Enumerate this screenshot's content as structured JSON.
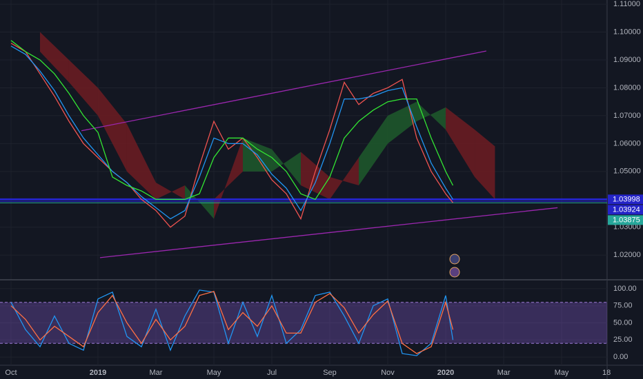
{
  "chart_data": [
    {
      "type": "line",
      "x": [
        0,
        0.5,
        1,
        1.5,
        2,
        2.5,
        3,
        3.5,
        4,
        4.5,
        5,
        5.5,
        6,
        6.5,
        7,
        7.5,
        8,
        8.5,
        9,
        9.5,
        10,
        10.5,
        11,
        11.5,
        12,
        12.5,
        13,
        13.5,
        14,
        14.5,
        15,
        15.25
      ],
      "series": [
        {
          "color": "#ef5350",
          "values": [
            1.096,
            1.093,
            1.085,
            1.077,
            1.068,
            1.06,
            1.055,
            1.05,
            1.046,
            1.04,
            1.036,
            1.03,
            1.034,
            1.052,
            1.068,
            1.058,
            1.062,
            1.055,
            1.047,
            1.042,
            1.033,
            1.05,
            1.065,
            1.082,
            1.074,
            1.078,
            1.08,
            1.083,
            1.062,
            1.05,
            1.042,
            1.0388
          ]
        },
        {
          "color": "#2196f3",
          "values": [
            1.095,
            1.092,
            1.086,
            1.079,
            1.07,
            1.062,
            1.056,
            1.05,
            1.046,
            1.041,
            1.037,
            1.033,
            1.036,
            1.048,
            1.062,
            1.06,
            1.06,
            1.056,
            1.049,
            1.044,
            1.036,
            1.046,
            1.06,
            1.076,
            1.076,
            1.077,
            1.079,
            1.08,
            1.066,
            1.053,
            1.044,
            1.04
          ]
        },
        {
          "color": "#33e633",
          "values": [
            1.097,
            1.093,
            1.09,
            1.085,
            1.078,
            1.07,
            1.064,
            1.048,
            1.045,
            1.043,
            1.04,
            1.04,
            1.04,
            1.042,
            1.055,
            1.062,
            1.062,
            1.058,
            1.055,
            1.05,
            1.042,
            1.04,
            1.048,
            1.062,
            1.068,
            1.072,
            1.075,
            1.076,
            1.076,
            1.062,
            1.05,
            1.045
          ]
        }
      ],
      "cloud": {
        "x": [
          1,
          2,
          3,
          4,
          5,
          6,
          7,
          8,
          9,
          10,
          11,
          12,
          13,
          14,
          15,
          16,
          16.7
        ],
        "span_a": [
          1.093,
          1.082,
          1.07,
          1.05,
          1.04,
          1.045,
          1.033,
          1.062,
          1.058,
          1.045,
          1.04,
          1.055,
          1.07,
          1.075,
          1.065,
          1.048,
          1.04
        ],
        "span_b": [
          1.1,
          1.09,
          1.08,
          1.067,
          1.046,
          1.04,
          1.04,
          1.05,
          1.05,
          1.057,
          1.048,
          1.045,
          1.06,
          1.068,
          1.073,
          1.065,
          1.059
        ],
        "up_color": "#1f5a2c",
        "down_color": "#6e1c22"
      },
      "trend_lines": [
        {
          "x": [
            2.43,
            16.4
          ],
          "values": [
            1.0646,
            1.0932
          ],
          "color": "#9c27b0"
        },
        {
          "x": [
            3.07,
            18.86
          ],
          "values": [
            1.0191,
            1.037
          ],
          "color": "#9c27b0"
        }
      ],
      "price_lines": [
        {
          "value": 1.03998,
          "color": "#2424c8"
        },
        {
          "value": 1.03924,
          "color": "#2424c8"
        },
        {
          "value": 1.03875,
          "color": "#26a69a"
        }
      ],
      "xlim": [
        -0.38,
        20.57
      ],
      "xticks": [
        {
          "value": 0,
          "label": "Oct"
        },
        {
          "value": 3,
          "label": "2019"
        },
        {
          "value": 5,
          "label": "Mar"
        },
        {
          "value": 7,
          "label": "May"
        },
        {
          "value": 9,
          "label": "Jul"
        },
        {
          "value": 11,
          "label": "Sep"
        },
        {
          "value": 13,
          "label": "Nov"
        },
        {
          "value": 15,
          "label": "2020"
        },
        {
          "value": 17,
          "label": "Mar"
        },
        {
          "value": 19,
          "label": "May"
        },
        {
          "value": 20.55,
          "label": "18"
        }
      ],
      "ylim": [
        1.0114,
        1.1115
      ],
      "yticks": [
        {
          "value": 1.02,
          "label": "1.02000"
        },
        {
          "value": 1.03,
          "label": "1.03000"
        },
        {
          "value": 1.05,
          "label": "1.05000"
        },
        {
          "value": 1.06,
          "label": "1.06000"
        },
        {
          "value": 1.07,
          "label": "1.07000"
        },
        {
          "value": 1.08,
          "label": "1.08000"
        },
        {
          "value": 1.09,
          "label": "1.09000"
        },
        {
          "value": 1.1,
          "label": "1.10000"
        },
        {
          "value": 1.11,
          "label": "1.11000"
        }
      ],
      "grid": true
    },
    {
      "type": "line",
      "x": [
        0,
        0.5,
        1,
        1.5,
        2,
        2.5,
        3,
        3.5,
        4,
        4.5,
        5,
        5.5,
        6,
        6.5,
        7,
        7.5,
        8,
        8.5,
        9,
        9.5,
        10,
        10.5,
        11,
        11.5,
        12,
        12.5,
        13,
        13.5,
        14,
        14.5,
        15,
        15.25
      ],
      "series": [
        {
          "color": "#2196f3",
          "values": [
            80,
            40,
            15,
            60,
            20,
            10,
            85,
            95,
            30,
            15,
            70,
            10,
            60,
            98,
            95,
            20,
            80,
            30,
            90,
            20,
            40,
            90,
            95,
            60,
            20,
            75,
            85,
            5,
            2,
            20,
            90,
            25
          ]
        },
        {
          "color": "#ff7043",
          "values": [
            75,
            55,
            25,
            45,
            30,
            15,
            65,
            90,
            50,
            20,
            55,
            25,
            45,
            90,
            96,
            40,
            65,
            45,
            75,
            35,
            35,
            80,
            93,
            72,
            35,
            62,
            82,
            20,
            5,
            15,
            80,
            40
          ]
        }
      ],
      "band": [
        20,
        80
      ],
      "band_color": "#7e57c2",
      "ylim": [
        -12,
        111
      ],
      "yticks": [
        {
          "value": 0,
          "label": "0.00"
        },
        {
          "value": 25,
          "label": "25.00"
        },
        {
          "value": 50,
          "label": "50.00"
        },
        {
          "value": 75,
          "label": "75.00"
        },
        {
          "value": 100,
          "label": "100.00"
        }
      ],
      "grid": true
    }
  ]
}
